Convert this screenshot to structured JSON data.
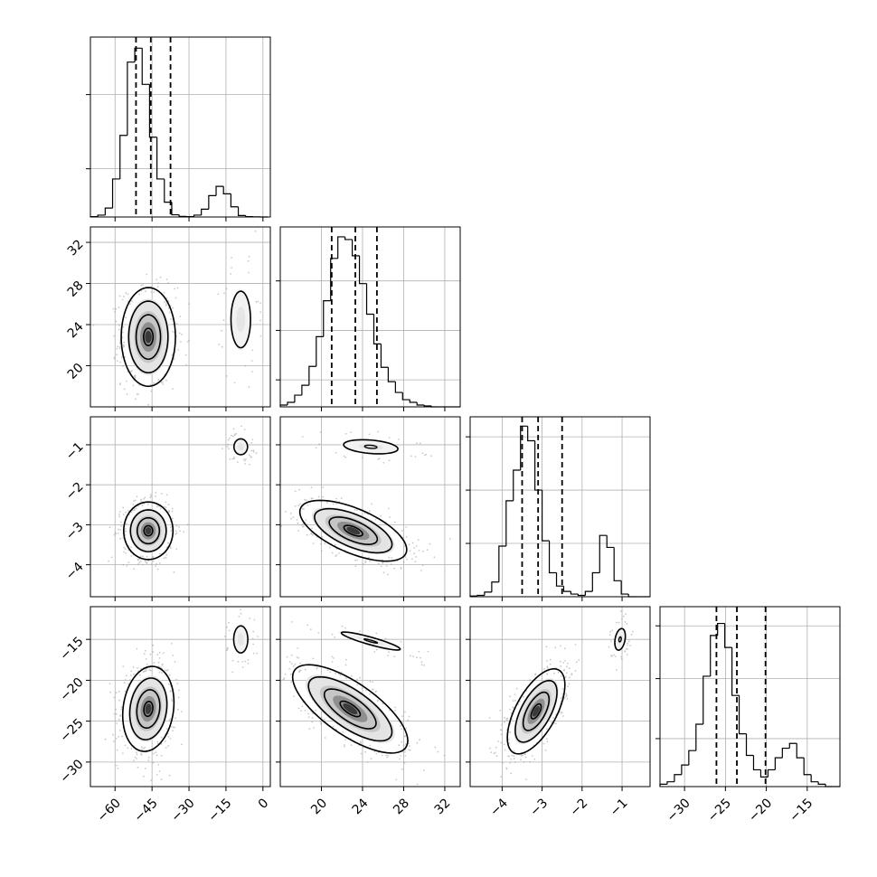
{
  "chart_data": {
    "type": "corner",
    "parameters": [
      {
        "range": [
          -70,
          3
        ],
        "ticks": [
          -60,
          -45,
          -30,
          -15,
          0
        ],
        "tick_labels": [
          "−60",
          "−45",
          "−30",
          "−15",
          "0"
        ],
        "quantiles": [
          -51.5,
          -45.5,
          -37.5
        ],
        "hist": {
          "bin_start": -70,
          "bin_width": 3,
          "counts": [
            0.2,
            1.0,
            4.8,
            20.5,
            44.0,
            83.5,
            91.0,
            71.5,
            43.0,
            20.5,
            8.0,
            1.2,
            0.3,
            0.2,
            1.0,
            4.2,
            11.5,
            16.5,
            12.5,
            5.5,
            0.8,
            0.2,
            0.1,
            0.0
          ],
          "ymax": 97,
          "yticks": [
            26,
            66
          ]
        }
      },
      {
        "range": [
          16,
          33.5
        ],
        "ticks": [
          20,
          24,
          28,
          32
        ],
        "tick_labels": [
          "20",
          "24",
          "28",
          "32"
        ],
        "quantiles": [
          21.0,
          23.3,
          25.4
        ],
        "hist": {
          "bin_start": 16,
          "bin_width": 0.7,
          "counts": [
            2,
            5,
            13,
            24,
            45,
            78,
            118,
            165,
            189,
            186,
            168,
            137,
            103,
            70,
            44,
            28,
            16,
            8,
            5,
            2,
            1,
            0,
            0,
            0,
            0
          ],
          "ymax": 200,
          "yticks": [
            30,
            85,
            140
          ]
        }
      },
      {
        "range": [
          -4.8,
          -0.3
        ],
        "ticks": [
          -4,
          -3,
          -2,
          -1
        ],
        "tick_labels": [
          "−4",
          "−3",
          "−2",
          "−1"
        ],
        "quantiles": [
          -3.5,
          -3.1,
          -2.5
        ],
        "hist": {
          "bin_start": -4.8,
          "bin_width": 0.18,
          "counts": [
            0.5,
            1,
            3.5,
            11,
            38,
            72,
            95,
            128,
            117,
            80,
            42,
            18,
            8,
            4,
            2,
            1,
            4,
            18,
            46,
            37,
            12,
            2,
            0,
            0,
            0
          ],
          "ymax": 135,
          "yticks": [
            40,
            80,
            120
          ]
        }
      },
      {
        "range": [
          -33,
          -11
        ],
        "ticks": [
          -30,
          -25,
          -20,
          -15
        ],
        "tick_labels": [
          "−30",
          "−25",
          "−20",
          "−15"
        ],
        "quantiles": [
          -26.1,
          -23.6,
          -20.1
        ],
        "hist": {
          "bin_start": -33,
          "bin_width": 0.88,
          "counts": [
            1,
            2,
            5,
            9,
            15,
            26,
            46,
            63,
            68,
            58,
            38,
            22,
            13,
            7,
            4,
            7,
            12,
            16,
            18,
            12,
            5,
            2,
            1,
            0,
            0
          ],
          "ymax": 75,
          "yticks": [
            20,
            45,
            67
          ]
        }
      }
    ],
    "pairs": [
      {
        "row": 1,
        "col": 0,
        "ytick_labels": [
          "20",
          "24",
          "28",
          "32"
        ],
        "components": [
          {
            "weight": 0.85,
            "mean": [
              -46.5,
              22.8
            ],
            "sd": [
              5.5,
              2.4
            ],
            "rho": 0.0
          },
          {
            "weight": 0.15,
            "mean": [
              -9.0,
              24.5
            ],
            "sd": [
              3.6,
              2.5
            ],
            "rho": 0.0
          }
        ]
      },
      {
        "row": 2,
        "col": 0,
        "ytick_labels": [
          "−4",
          "−3",
          "−2",
          "−1"
        ],
        "components": [
          {
            "weight": 0.85,
            "mean": [
              -46.5,
              -3.15
            ],
            "sd": [
              5.0,
              0.36
            ],
            "rho": 0.0
          },
          {
            "weight": 0.15,
            "mean": [
              -9.0,
              -1.05
            ],
            "sd": [
              2.5,
              0.18
            ],
            "rho": 0.0
          }
        ]
      },
      {
        "row": 2,
        "col": 1,
        "components": [
          {
            "weight": 0.85,
            "mean": [
              23.1,
              -3.15
            ],
            "sd": [
              2.6,
              0.38
            ],
            "rho": -0.62
          },
          {
            "weight": 0.15,
            "mean": [
              24.8,
              -1.05
            ],
            "sd": [
              2.4,
              0.16
            ],
            "rho": -0.3
          }
        ]
      },
      {
        "row": 3,
        "col": 0,
        "ytick_labels": [
          "−30",
          "−25",
          "−20",
          "−15"
        ],
        "components": [
          {
            "weight": 0.85,
            "mean": [
              -46.5,
              -23.5
            ],
            "sd": [
              5.2,
              2.6
            ],
            "rho": 0.15
          },
          {
            "weight": 0.15,
            "mean": [
              -9.0,
              -15.0
            ],
            "sd": [
              2.6,
              1.5
            ],
            "rho": 0.0
          }
        ]
      },
      {
        "row": 3,
        "col": 1,
        "components": [
          {
            "weight": 0.85,
            "mean": [
              22.8,
              -23.5
            ],
            "sd": [
              2.8,
              2.7
            ],
            "rho": -0.72
          },
          {
            "weight": 0.15,
            "mean": [
              24.8,
              -15.2
            ],
            "sd": [
              2.6,
              1.0
            ],
            "rho": -0.9
          }
        ]
      },
      {
        "row": 3,
        "col": 2,
        "components": [
          {
            "weight": 0.85,
            "mean": [
              -3.15,
              -23.8
            ],
            "sd": [
              0.36,
              2.6
            ],
            "rho": 0.62
          },
          {
            "weight": 0.15,
            "mean": [
              -1.05,
              -15.0
            ],
            "sd": [
              0.12,
              1.2
            ],
            "rho": 0.3
          }
        ]
      }
    ],
    "contour_levels_sigma": [
      0.5,
      1.0,
      1.5,
      2.0
    ],
    "colors": {
      "line": "#000000",
      "grid": "#b0b0b0",
      "scatter": "#9e9e9e",
      "density_dark": "#000000",
      "density_light": "#ffffff"
    },
    "grid": true
  }
}
